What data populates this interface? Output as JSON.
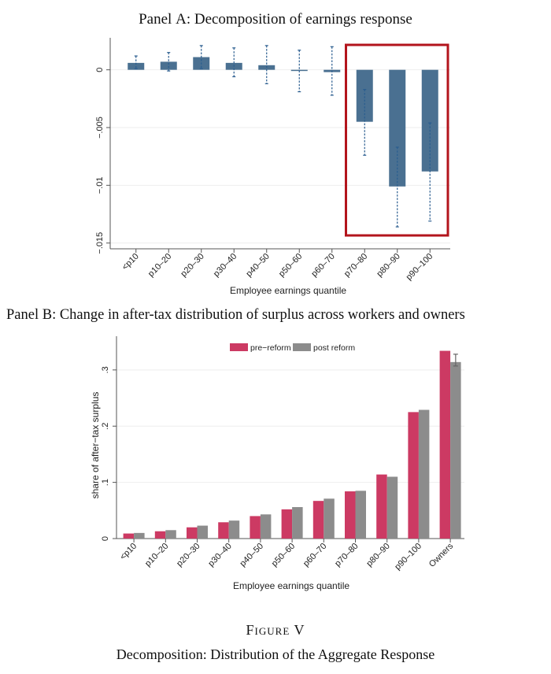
{
  "panelA": {
    "title_prefix": "Panel ",
    "title_letter": "A",
    "title_rest": ": Decomposition of earnings response"
  },
  "panelB": {
    "title_prefix": "Panel ",
    "title_letter": "B",
    "title_rest": ": Change in after-tax distribution of surplus across workers and owners"
  },
  "figure": {
    "label": "Figure V",
    "caption": "Decomposition: Distribution of the Aggregate Response"
  },
  "colors": {
    "barA": "#4a7091",
    "ciA": "#2a5d8f",
    "pre": "#cc3a63",
    "post": "#8c8c8c",
    "highlight": "#b3141c",
    "grid": "#eeeeee",
    "axis": "#555555"
  },
  "chart_data": [
    {
      "type": "bar",
      "title": "Panel A: Decomposition of earnings response",
      "xlabel": "Employee earnings quantile",
      "ylabel": "",
      "ylim": [
        -0.0155,
        0.0025
      ],
      "yticks": [
        0,
        -0.005,
        -0.01,
        -0.015
      ],
      "ytick_labels": [
        "0",
        "−.005",
        "−.01",
        "−.015"
      ],
      "categories": [
        "<p10",
        "p10–20",
        "p20–30",
        "p30–40",
        "p40–50",
        "p50–60",
        "p60–70",
        "p70–80",
        "p80–90",
        "p90–100"
      ],
      "values": [
        0.0006,
        0.0007,
        0.0011,
        0.0006,
        0.0004,
        -0.0001,
        -0.0002,
        -0.0045,
        -0.0101,
        -0.0088
      ],
      "ci_low": [
        0.0001,
        -0.0001,
        0.0001,
        -0.0006,
        -0.0012,
        -0.0019,
        -0.0022,
        -0.0074,
        -0.0136,
        -0.0131
      ],
      "ci_high": [
        0.0012,
        0.0015,
        0.0021,
        0.0019,
        0.0021,
        0.0017,
        0.002,
        -0.0017,
        -0.0067,
        -0.0046
      ],
      "highlight": {
        "from": "p70–80",
        "to": "p90–100"
      }
    },
    {
      "type": "bar",
      "title": "Panel B: Change in after-tax distribution of surplus across workers and owners",
      "xlabel": "Employee earnings quantile",
      "ylabel": "share of after−tax surplus",
      "ylim": [
        0,
        0.36
      ],
      "yticks": [
        0,
        0.1,
        0.2,
        0.3
      ],
      "ytick_labels": [
        "0",
        ".1",
        ".2",
        ".3"
      ],
      "categories": [
        "<p10",
        "p10–20",
        "p20–30",
        "p30–40",
        "p40–50",
        "p50–60",
        "p60–70",
        "p70–80",
        "p80–90",
        "p90–100",
        "Owners"
      ],
      "series": [
        {
          "name": "pre−reform",
          "values": [
            0.009,
            0.013,
            0.02,
            0.029,
            0.04,
            0.052,
            0.067,
            0.084,
            0.114,
            0.225,
            0.334
          ]
        },
        {
          "name": "post reform",
          "values": [
            0.01,
            0.015,
            0.023,
            0.032,
            0.043,
            0.056,
            0.071,
            0.085,
            0.11,
            0.229,
            0.314
          ]
        }
      ],
      "post_ci": {
        "category": "Owners",
        "low": 0.307,
        "high": 0.328
      },
      "legend": "top"
    }
  ]
}
